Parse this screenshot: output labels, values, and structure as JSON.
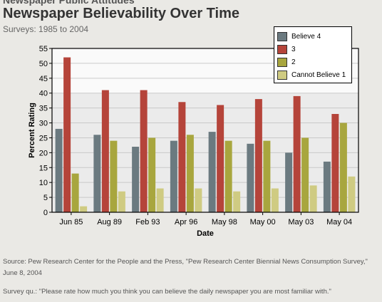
{
  "header": {
    "supertitle": "Newspaper Public Attitudes",
    "title": "Newspaper Believability Over Time",
    "subtitle": "Surveys: 1985 to 2004"
  },
  "footer": {
    "source": "Source: Pew Research Center for the People and the Press, \"Pew Research Center Biennial News Consumption Survey,\" June 8, 2004",
    "question": "Survey qu.: \"Please rate how much you think you can believe the daily newspaper you are most familiar with.\""
  },
  "colors": {
    "page_bg": "#eae9e5",
    "plot_bg_upper": "#fafafa",
    "plot_bg_lower": "#ebebeb"
  },
  "chart_data": {
    "type": "bar",
    "xlabel": "Date",
    "ylabel": "Percent Rating",
    "ylim": [
      0,
      55
    ],
    "yticks": [
      0,
      5,
      10,
      15,
      20,
      25,
      30,
      35,
      40,
      45,
      50,
      55
    ],
    "grid": true,
    "legend_position": "top-right",
    "categories": [
      "Jun 85",
      "Aug 89",
      "Feb 93",
      "Apr 96",
      "May 98",
      "May 00",
      "May 03",
      "May 04"
    ],
    "series": [
      {
        "name": "Believe 4",
        "color": "#6b7a80",
        "values": [
          28,
          26,
          22,
          24,
          27,
          23,
          20,
          17
        ]
      },
      {
        "name": "3",
        "color": "#b5443a",
        "values": [
          52,
          41,
          41,
          37,
          36,
          38,
          39,
          33
        ]
      },
      {
        "name": "2",
        "color": "#a8a63e",
        "values": [
          13,
          24,
          25,
          26,
          24,
          24,
          25,
          30
        ]
      },
      {
        "name": "Cannot Believe 1",
        "color": "#cfcb82",
        "values": [
          2,
          7,
          8,
          8,
          7,
          8,
          9,
          12
        ]
      }
    ]
  }
}
